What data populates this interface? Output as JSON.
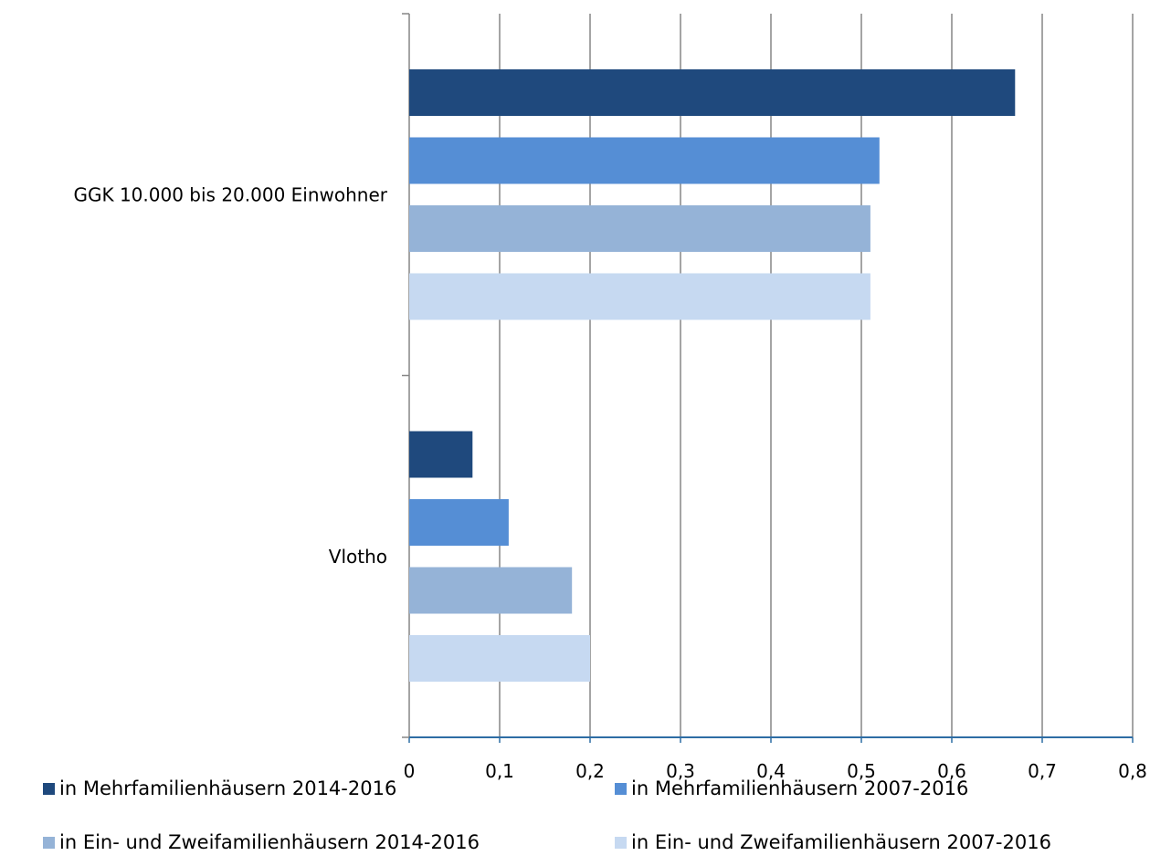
{
  "chart_data": {
    "type": "bar",
    "orientation": "horizontal",
    "categories": [
      "GGK 10.000 bis 20.000 Einwohner",
      "Vlotho"
    ],
    "series": [
      {
        "name": "in Mehrfamilienhäusern 2014-2016",
        "color": "#1f497d",
        "values": [
          0.67,
          0.07
        ]
      },
      {
        "name": "in Mehrfamilienhäusern 2007-2016",
        "color": "#558ed5",
        "values": [
          0.52,
          0.11
        ]
      },
      {
        "name": "in Ein- und Zweifamilienhäusern 2014-2016",
        "color": "#95b3d7",
        "values": [
          0.51,
          0.18
        ]
      },
      {
        "name": "in Ein- und Zweifamilienhäusern 2007-2016",
        "color": "#c6d9f1",
        "values": [
          0.51,
          0.2
        ]
      }
    ],
    "xlim": [
      0,
      0.8
    ],
    "x_ticks": [
      "0",
      "0,1",
      "0,2",
      "0,3",
      "0,4",
      "0,5",
      "0,6",
      "0,7",
      "0,8"
    ],
    "grid": "vertical",
    "legend_position": "bottom"
  }
}
